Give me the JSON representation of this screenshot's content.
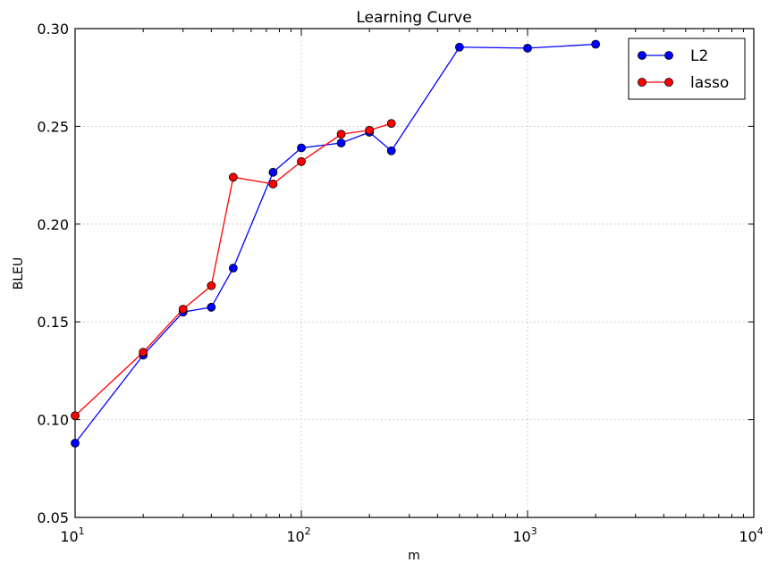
{
  "chart_data": {
    "type": "line",
    "title": "Learning Curve",
    "xlabel": "m",
    "ylabel": "BLEU",
    "xscale": "log",
    "xlim": [
      10,
      10000
    ],
    "ylim": [
      0.05,
      0.3
    ],
    "grid": true,
    "legend_position": "top-right",
    "x_ticks": [
      {
        "value": 10,
        "base": "10",
        "exp": "1"
      },
      {
        "value": 100,
        "base": "10",
        "exp": "2"
      },
      {
        "value": 1000,
        "base": "10",
        "exp": "3"
      },
      {
        "value": 10000,
        "base": "10",
        "exp": "4"
      }
    ],
    "y_ticks": [
      {
        "value": 0.05,
        "label": "0.05"
      },
      {
        "value": 0.1,
        "label": "0.10"
      },
      {
        "value": 0.15,
        "label": "0.15"
      },
      {
        "value": 0.2,
        "label": "0.20"
      },
      {
        "value": 0.25,
        "label": "0.25"
      },
      {
        "value": 0.3,
        "label": "0.30"
      }
    ],
    "series": [
      {
        "name": "L2",
        "color": "#0000ff",
        "x": [
          10,
          20,
          30,
          40,
          50,
          75,
          100,
          150,
          200,
          250,
          500,
          1000,
          2000
        ],
        "y": [
          0.088,
          0.133,
          0.155,
          0.1575,
          0.1775,
          0.2265,
          0.239,
          0.2415,
          0.247,
          0.2375,
          0.2905,
          0.29,
          0.292
        ]
      },
      {
        "name": "lasso",
        "color": "#ff0000",
        "x": [
          10,
          20,
          30,
          40,
          50,
          75,
          100,
          150,
          200,
          250
        ],
        "y": [
          0.102,
          0.1345,
          0.1565,
          0.1685,
          0.224,
          0.2205,
          0.232,
          0.246,
          0.248,
          0.2515
        ]
      }
    ]
  }
}
